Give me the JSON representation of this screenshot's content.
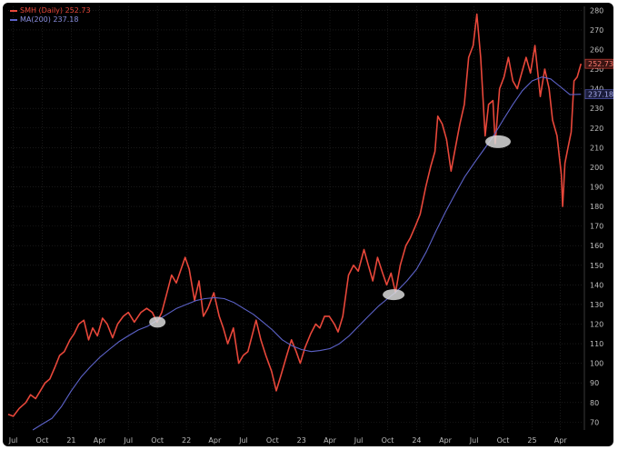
{
  "colors": {
    "background": "#000000",
    "price_line": "#e8473a",
    "ma_line": "#5c62c8",
    "grid": "#2a2a2a",
    "axis_text": "#bfbfbf",
    "highlight": "#d9d9d9"
  },
  "legend": {
    "price_label": "SMH (Daily)",
    "price_value": "252.73",
    "ma_label": "MA(200)",
    "ma_value": "237.18"
  },
  "chart_data": {
    "type": "line",
    "title": "",
    "xlabel": "",
    "ylabel": "",
    "ylim": [
      66,
      282
    ],
    "xlim": [
      "2020-06-15",
      "2025-06-10"
    ],
    "grid": true,
    "legend_position": "top-left",
    "y_ticks": [
      70,
      80,
      90,
      100,
      110,
      120,
      130,
      140,
      150,
      160,
      170,
      180,
      190,
      200,
      210,
      220,
      230,
      240,
      250,
      260,
      270,
      280
    ],
    "x_ticks": [
      {
        "date": "2020-07-01",
        "label": "Jul"
      },
      {
        "date": "2020-10-01",
        "label": "Oct"
      },
      {
        "date": "2021-01-01",
        "label": "21"
      },
      {
        "date": "2021-04-01",
        "label": "Apr"
      },
      {
        "date": "2021-07-01",
        "label": "Jul"
      },
      {
        "date": "2021-10-01",
        "label": "Oct"
      },
      {
        "date": "2022-01-01",
        "label": "22"
      },
      {
        "date": "2022-04-01",
        "label": "Apr"
      },
      {
        "date": "2022-07-01",
        "label": "Jul"
      },
      {
        "date": "2022-10-01",
        "label": "Oct"
      },
      {
        "date": "2023-01-01",
        "label": "23"
      },
      {
        "date": "2023-04-01",
        "label": "Apr"
      },
      {
        "date": "2023-07-01",
        "label": "Jul"
      },
      {
        "date": "2023-10-01",
        "label": "Oct"
      },
      {
        "date": "2024-01-01",
        "label": "24"
      },
      {
        "date": "2024-04-01",
        "label": "Apr"
      },
      {
        "date": "2024-07-01",
        "label": "Jul"
      },
      {
        "date": "2024-10-01",
        "label": "Oct"
      },
      {
        "date": "2025-01-01",
        "label": "25"
      },
      {
        "date": "2025-04-01",
        "label": "Apr"
      }
    ],
    "series": [
      {
        "name": "SMH (Daily)",
        "last_value": 252.73,
        "points": [
          [
            "2020-06-15",
            74
          ],
          [
            "2020-07-01",
            73
          ],
          [
            "2020-07-20",
            77
          ],
          [
            "2020-08-10",
            80
          ],
          [
            "2020-08-25",
            84
          ],
          [
            "2020-09-10",
            82
          ],
          [
            "2020-09-25",
            86
          ],
          [
            "2020-10-10",
            90
          ],
          [
            "2020-10-25",
            92
          ],
          [
            "2020-11-10",
            98
          ],
          [
            "2020-11-25",
            104
          ],
          [
            "2020-12-10",
            106
          ],
          [
            "2020-12-28",
            112
          ],
          [
            "2021-01-10",
            115
          ],
          [
            "2021-01-25",
            120
          ],
          [
            "2021-02-10",
            122
          ],
          [
            "2021-02-25",
            112
          ],
          [
            "2021-03-10",
            118
          ],
          [
            "2021-03-25",
            114
          ],
          [
            "2021-04-10",
            123
          ],
          [
            "2021-04-25",
            120
          ],
          [
            "2021-05-12",
            113
          ],
          [
            "2021-05-28",
            120
          ],
          [
            "2021-06-15",
            124
          ],
          [
            "2021-07-01",
            126
          ],
          [
            "2021-07-20",
            121
          ],
          [
            "2021-08-10",
            126
          ],
          [
            "2021-08-28",
            128
          ],
          [
            "2021-09-15",
            126
          ],
          [
            "2021-09-30",
            121
          ],
          [
            "2021-10-15",
            126
          ],
          [
            "2021-10-30",
            135
          ],
          [
            "2021-11-15",
            145
          ],
          [
            "2021-11-30",
            141
          ],
          [
            "2021-12-15",
            148
          ],
          [
            "2021-12-28",
            154
          ],
          [
            "2022-01-10",
            148
          ],
          [
            "2022-01-27",
            132
          ],
          [
            "2022-02-10",
            142
          ],
          [
            "2022-02-24",
            124
          ],
          [
            "2022-03-10",
            128
          ],
          [
            "2022-03-29",
            136
          ],
          [
            "2022-04-15",
            124
          ],
          [
            "2022-04-28",
            118
          ],
          [
            "2022-05-12",
            110
          ],
          [
            "2022-05-30",
            118
          ],
          [
            "2022-06-16",
            100
          ],
          [
            "2022-06-30",
            104
          ],
          [
            "2022-07-15",
            106
          ],
          [
            "2022-08-10",
            122
          ],
          [
            "2022-08-25",
            112
          ],
          [
            "2022-09-10",
            104
          ],
          [
            "2022-09-28",
            96
          ],
          [
            "2022-10-13",
            86
          ],
          [
            "2022-10-28",
            94
          ],
          [
            "2022-11-15",
            104
          ],
          [
            "2022-11-30",
            112
          ],
          [
            "2022-12-15",
            106
          ],
          [
            "2022-12-28",
            100
          ],
          [
            "2023-01-12",
            108
          ],
          [
            "2023-01-30",
            115
          ],
          [
            "2023-02-15",
            120
          ],
          [
            "2023-02-28",
            118
          ],
          [
            "2023-03-15",
            124
          ],
          [
            "2023-03-30",
            124
          ],
          [
            "2023-04-15",
            120
          ],
          [
            "2023-04-27",
            116
          ],
          [
            "2023-05-12",
            124
          ],
          [
            "2023-05-30",
            145
          ],
          [
            "2023-06-15",
            150
          ],
          [
            "2023-06-30",
            147
          ],
          [
            "2023-07-18",
            158
          ],
          [
            "2023-08-01",
            150
          ],
          [
            "2023-08-15",
            142
          ],
          [
            "2023-08-30",
            154
          ],
          [
            "2023-09-15",
            146
          ],
          [
            "2023-09-28",
            140
          ],
          [
            "2023-10-12",
            146
          ],
          [
            "2023-10-26",
            136
          ],
          [
            "2023-11-10",
            150
          ],
          [
            "2023-11-28",
            160
          ],
          [
            "2023-12-12",
            164
          ],
          [
            "2023-12-28",
            170
          ],
          [
            "2024-01-12",
            176
          ],
          [
            "2024-01-30",
            190
          ],
          [
            "2024-02-14",
            200
          ],
          [
            "2024-02-28",
            208
          ],
          [
            "2024-03-08",
            226
          ],
          [
            "2024-03-22",
            222
          ],
          [
            "2024-04-05",
            214
          ],
          [
            "2024-04-19",
            198
          ],
          [
            "2024-05-03",
            210
          ],
          [
            "2024-05-17",
            222
          ],
          [
            "2024-05-31",
            232
          ],
          [
            "2024-06-14",
            256
          ],
          [
            "2024-06-28",
            262
          ],
          [
            "2024-07-10",
            278
          ],
          [
            "2024-07-22",
            256
          ],
          [
            "2024-08-05",
            216
          ],
          [
            "2024-08-16",
            232
          ],
          [
            "2024-08-30",
            234
          ],
          [
            "2024-09-06",
            212
          ],
          [
            "2024-09-20",
            240
          ],
          [
            "2024-10-04",
            246
          ],
          [
            "2024-10-18",
            256
          ],
          [
            "2024-11-01",
            244
          ],
          [
            "2024-11-15",
            240
          ],
          [
            "2024-11-29",
            248
          ],
          [
            "2024-12-13",
            256
          ],
          [
            "2024-12-27",
            248
          ],
          [
            "2025-01-10",
            262
          ],
          [
            "2025-01-27",
            236
          ],
          [
            "2025-02-10",
            250
          ],
          [
            "2025-02-24",
            240
          ],
          [
            "2025-03-07",
            224
          ],
          [
            "2025-03-21",
            216
          ],
          [
            "2025-04-04",
            196
          ],
          [
            "2025-04-08",
            180
          ],
          [
            "2025-04-15",
            202
          ],
          [
            "2025-04-25",
            210
          ],
          [
            "2025-05-05",
            218
          ],
          [
            "2025-05-14",
            244
          ],
          [
            "2025-05-24",
            246
          ],
          [
            "2025-06-05",
            252.73
          ]
        ]
      },
      {
        "name": "MA(200)",
        "last_value": 237.18,
        "points": [
          [
            "2020-09-01",
            66
          ],
          [
            "2020-10-01",
            69
          ],
          [
            "2020-11-01",
            72
          ],
          [
            "2020-12-01",
            78
          ],
          [
            "2021-01-01",
            86
          ],
          [
            "2021-02-01",
            93
          ],
          [
            "2021-03-01",
            98
          ],
          [
            "2021-04-01",
            103
          ],
          [
            "2021-05-01",
            107
          ],
          [
            "2021-06-01",
            111
          ],
          [
            "2021-07-01",
            114
          ],
          [
            "2021-08-01",
            117
          ],
          [
            "2021-09-01",
            119
          ],
          [
            "2021-10-01",
            122
          ],
          [
            "2021-11-01",
            125
          ],
          [
            "2021-12-01",
            128
          ],
          [
            "2022-01-01",
            130
          ],
          [
            "2022-02-01",
            132
          ],
          [
            "2022-03-01",
            133
          ],
          [
            "2022-04-01",
            133.5
          ],
          [
            "2022-05-01",
            133
          ],
          [
            "2022-06-01",
            131
          ],
          [
            "2022-07-01",
            128
          ],
          [
            "2022-08-01",
            125
          ],
          [
            "2022-09-01",
            121
          ],
          [
            "2022-10-01",
            117
          ],
          [
            "2022-11-01",
            112
          ],
          [
            "2022-12-01",
            109
          ],
          [
            "2023-01-01",
            107
          ],
          [
            "2023-02-01",
            106
          ],
          [
            "2023-03-01",
            106.5
          ],
          [
            "2023-04-01",
            107.5
          ],
          [
            "2023-05-01",
            110
          ],
          [
            "2023-06-01",
            114
          ],
          [
            "2023-07-01",
            119
          ],
          [
            "2023-08-01",
            124
          ],
          [
            "2023-09-01",
            129
          ],
          [
            "2023-10-01",
            133
          ],
          [
            "2023-11-01",
            137
          ],
          [
            "2023-12-01",
            142
          ],
          [
            "2024-01-01",
            148
          ],
          [
            "2024-02-01",
            157
          ],
          [
            "2024-03-01",
            167
          ],
          [
            "2024-04-01",
            177
          ],
          [
            "2024-05-01",
            186
          ],
          [
            "2024-06-01",
            195
          ],
          [
            "2024-07-01",
            202
          ],
          [
            "2024-08-01",
            209
          ],
          [
            "2024-09-01",
            216
          ],
          [
            "2024-10-01",
            224
          ],
          [
            "2024-11-01",
            232
          ],
          [
            "2024-12-01",
            239
          ],
          [
            "2025-01-01",
            244
          ],
          [
            "2025-02-01",
            246
          ],
          [
            "2025-03-01",
            245
          ],
          [
            "2025-04-01",
            241
          ],
          [
            "2025-05-01",
            237
          ],
          [
            "2025-06-05",
            237.18
          ]
        ]
      }
    ],
    "highlights": [
      {
        "date": "2021-10-01",
        "value": 121
      },
      {
        "date": "2023-10-20",
        "value": 135
      },
      {
        "date": "2024-09-15",
        "value": 213
      }
    ]
  }
}
